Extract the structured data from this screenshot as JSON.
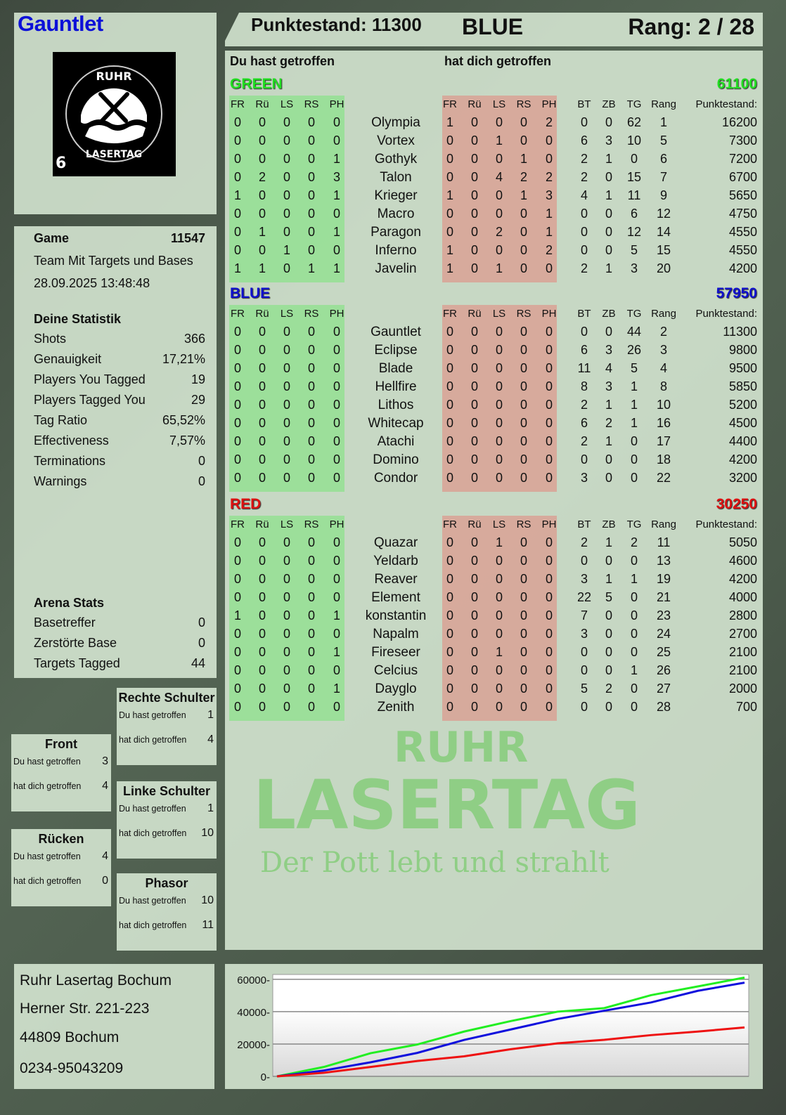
{
  "player": {
    "name": "Gauntlet",
    "logo_text_top": "RUHR",
    "logo_text_bottom": "LASERTAG",
    "logo_number": "6"
  },
  "header": {
    "score_label": "Punktestand: 11300",
    "team": "BLUE",
    "rank": "Rang: 2 / 28"
  },
  "colors": {
    "green": "#22dd22",
    "blue": "#1010cc",
    "red": "#dd1111",
    "player_name": "#0c10d8"
  },
  "game": {
    "label": "Game",
    "id": "11547",
    "mode": "Team Mit Targets und Bases",
    "datetime": "28.09.2025 13:48:48"
  },
  "stats": {
    "title": "Deine Statistik",
    "items": [
      {
        "label": "Shots",
        "value": "366"
      },
      {
        "label": "Genauigkeit",
        "value": "17,21%"
      },
      {
        "label": "Players You Tagged",
        "value": "19"
      },
      {
        "label": "Players Tagged You",
        "value": "29"
      },
      {
        "label": "Tag Ratio",
        "value": "65,52%"
      },
      {
        "label": "Effectiveness",
        "value": "7,57%"
      },
      {
        "label": "Terminations",
        "value": "0"
      },
      {
        "label": "Warnings",
        "value": "0"
      }
    ]
  },
  "arena": {
    "title": "Arena Stats",
    "items": [
      {
        "label": "Basetreffer",
        "value": "0"
      },
      {
        "label": "Zerstörte Base",
        "value": "0"
      },
      {
        "label": "Targets Tagged",
        "value": "44"
      }
    ]
  },
  "body_parts": {
    "you_hit_label": "Du hast getroffen",
    "hit_you_label": "hat dich getroffen",
    "right_shoulder": {
      "title": "Rechte Schulter",
      "you_hit": "1",
      "hit_you": "4"
    },
    "front": {
      "title": "Front",
      "you_hit": "3",
      "hit_you": "4"
    },
    "left_shoulder": {
      "title": "Linke Schulter",
      "you_hit": "1",
      "hit_you": "10"
    },
    "back": {
      "title": "Rücken",
      "you_hit": "4",
      "hit_you": "0"
    },
    "phasor": {
      "title": "Phasor",
      "you_hit": "10",
      "hit_you": "11"
    }
  },
  "address": {
    "line1": "Ruhr Lasertag Bochum",
    "line2": "Herner Str. 221-223",
    "line3": "44809 Bochum",
    "line4": "0234-95043209"
  },
  "watermark": {
    "line1": "RUHR",
    "line2": "LASERTAG",
    "line3": "Der Pott lebt und strahlt"
  },
  "table": {
    "you_hit_label": "Du hast getroffen",
    "hit_you_label": "hat dich getroffen",
    "hit_cols": [
      "FR",
      "Rü",
      "LS",
      "RS",
      "PH"
    ],
    "stat_cols": [
      "BT",
      "ZB",
      "TG",
      "Rang",
      "Punktestand:"
    ],
    "teams": [
      {
        "name": "GREEN",
        "score": "61100",
        "color": "#22dd22",
        "players": [
          {
            "name": "Olympia",
            "hit": [
              0,
              0,
              0,
              0,
              0
            ],
            "got": [
              1,
              0,
              0,
              0,
              2
            ],
            "bt": 0,
            "zb": 0,
            "tg": 62,
            "rang": 1,
            "score": 16200
          },
          {
            "name": "Vortex",
            "hit": [
              0,
              0,
              0,
              0,
              0
            ],
            "got": [
              0,
              0,
              1,
              0,
              0
            ],
            "bt": 6,
            "zb": 3,
            "tg": 10,
            "rang": 5,
            "score": 7300
          },
          {
            "name": "Gothyk",
            "hit": [
              0,
              0,
              0,
              0,
              1
            ],
            "got": [
              0,
              0,
              0,
              1,
              0
            ],
            "bt": 2,
            "zb": 1,
            "tg": 0,
            "rang": 6,
            "score": 7200
          },
          {
            "name": "Talon",
            "hit": [
              0,
              2,
              0,
              0,
              3
            ],
            "got": [
              0,
              0,
              4,
              2,
              2
            ],
            "bt": 2,
            "zb": 0,
            "tg": 15,
            "rang": 7,
            "score": 6700
          },
          {
            "name": "Krieger",
            "hit": [
              1,
              0,
              0,
              0,
              1
            ],
            "got": [
              1,
              0,
              0,
              1,
              3
            ],
            "bt": 4,
            "zb": 1,
            "tg": 11,
            "rang": 9,
            "score": 5650
          },
          {
            "name": "Macro",
            "hit": [
              0,
              0,
              0,
              0,
              0
            ],
            "got": [
              0,
              0,
              0,
              0,
              1
            ],
            "bt": 0,
            "zb": 0,
            "tg": 6,
            "rang": 12,
            "score": 4750
          },
          {
            "name": "Paragon",
            "hit": [
              0,
              1,
              0,
              0,
              1
            ],
            "got": [
              0,
              0,
              2,
              0,
              1
            ],
            "bt": 0,
            "zb": 0,
            "tg": 12,
            "rang": 14,
            "score": 4550
          },
          {
            "name": "Inferno",
            "hit": [
              0,
              0,
              1,
              0,
              0
            ],
            "got": [
              1,
              0,
              0,
              0,
              2
            ],
            "bt": 0,
            "zb": 0,
            "tg": 5,
            "rang": 15,
            "score": 4550
          },
          {
            "name": "Javelin",
            "hit": [
              1,
              1,
              0,
              1,
              1
            ],
            "got": [
              1,
              0,
              1,
              0,
              0
            ],
            "bt": 2,
            "zb": 1,
            "tg": 3,
            "rang": 20,
            "score": 4200
          }
        ]
      },
      {
        "name": "BLUE",
        "score": "57950",
        "color": "#1010cc",
        "players": [
          {
            "name": "Gauntlet",
            "hit": [
              0,
              0,
              0,
              0,
              0
            ],
            "got": [
              0,
              0,
              0,
              0,
              0
            ],
            "bt": 0,
            "zb": 0,
            "tg": 44,
            "rang": 2,
            "score": 11300
          },
          {
            "name": "Eclipse",
            "hit": [
              0,
              0,
              0,
              0,
              0
            ],
            "got": [
              0,
              0,
              0,
              0,
              0
            ],
            "bt": 6,
            "zb": 3,
            "tg": 26,
            "rang": 3,
            "score": 9800
          },
          {
            "name": "Blade",
            "hit": [
              0,
              0,
              0,
              0,
              0
            ],
            "got": [
              0,
              0,
              0,
              0,
              0
            ],
            "bt": 11,
            "zb": 4,
            "tg": 5,
            "rang": 4,
            "score": 9500
          },
          {
            "name": "Hellfire",
            "hit": [
              0,
              0,
              0,
              0,
              0
            ],
            "got": [
              0,
              0,
              0,
              0,
              0
            ],
            "bt": 8,
            "zb": 3,
            "tg": 1,
            "rang": 8,
            "score": 5850
          },
          {
            "name": "Lithos",
            "hit": [
              0,
              0,
              0,
              0,
              0
            ],
            "got": [
              0,
              0,
              0,
              0,
              0
            ],
            "bt": 2,
            "zb": 1,
            "tg": 1,
            "rang": 10,
            "score": 5200
          },
          {
            "name": "Whitecap",
            "hit": [
              0,
              0,
              0,
              0,
              0
            ],
            "got": [
              0,
              0,
              0,
              0,
              0
            ],
            "bt": 6,
            "zb": 2,
            "tg": 1,
            "rang": 16,
            "score": 4500
          },
          {
            "name": "Atachi",
            "hit": [
              0,
              0,
              0,
              0,
              0
            ],
            "got": [
              0,
              0,
              0,
              0,
              0
            ],
            "bt": 2,
            "zb": 1,
            "tg": 0,
            "rang": 17,
            "score": 4400
          },
          {
            "name": "Domino",
            "hit": [
              0,
              0,
              0,
              0,
              0
            ],
            "got": [
              0,
              0,
              0,
              0,
              0
            ],
            "bt": 0,
            "zb": 0,
            "tg": 0,
            "rang": 18,
            "score": 4200
          },
          {
            "name": "Condor",
            "hit": [
              0,
              0,
              0,
              0,
              0
            ],
            "got": [
              0,
              0,
              0,
              0,
              0
            ],
            "bt": 3,
            "zb": 0,
            "tg": 0,
            "rang": 22,
            "score": 3200
          }
        ]
      },
      {
        "name": "RED",
        "score": "30250",
        "color": "#dd1111",
        "players": [
          {
            "name": "Quazar",
            "hit": [
              0,
              0,
              0,
              0,
              0
            ],
            "got": [
              0,
              0,
              1,
              0,
              0
            ],
            "bt": 2,
            "zb": 1,
            "tg": 2,
            "rang": 11,
            "score": 5050
          },
          {
            "name": "Yeldarb",
            "hit": [
              0,
              0,
              0,
              0,
              0
            ],
            "got": [
              0,
              0,
              0,
              0,
              0
            ],
            "bt": 0,
            "zb": 0,
            "tg": 0,
            "rang": 13,
            "score": 4600
          },
          {
            "name": "Reaver",
            "hit": [
              0,
              0,
              0,
              0,
              0
            ],
            "got": [
              0,
              0,
              0,
              0,
              0
            ],
            "bt": 3,
            "zb": 1,
            "tg": 1,
            "rang": 19,
            "score": 4200
          },
          {
            "name": "Element",
            "hit": [
              0,
              0,
              0,
              0,
              0
            ],
            "got": [
              0,
              0,
              0,
              0,
              0
            ],
            "bt": 22,
            "zb": 5,
            "tg": 0,
            "rang": 21,
            "score": 4000
          },
          {
            "name": "konstantin",
            "hit": [
              1,
              0,
              0,
              0,
              1
            ],
            "got": [
              0,
              0,
              0,
              0,
              0
            ],
            "bt": 7,
            "zb": 0,
            "tg": 0,
            "rang": 23,
            "score": 2800
          },
          {
            "name": "Napalm",
            "hit": [
              0,
              0,
              0,
              0,
              0
            ],
            "got": [
              0,
              0,
              0,
              0,
              0
            ],
            "bt": 3,
            "zb": 0,
            "tg": 0,
            "rang": 24,
            "score": 2700
          },
          {
            "name": "Fireseer",
            "hit": [
              0,
              0,
              0,
              0,
              1
            ],
            "got": [
              0,
              0,
              1,
              0,
              0
            ],
            "bt": 0,
            "zb": 0,
            "tg": 0,
            "rang": 25,
            "score": 2100
          },
          {
            "name": "Celcius",
            "hit": [
              0,
              0,
              0,
              0,
              0
            ],
            "got": [
              0,
              0,
              0,
              0,
              0
            ],
            "bt": 0,
            "zb": 0,
            "tg": 1,
            "rang": 26,
            "score": 2100
          },
          {
            "name": "Dayglo",
            "hit": [
              0,
              0,
              0,
              0,
              1
            ],
            "got": [
              0,
              0,
              0,
              0,
              0
            ],
            "bt": 5,
            "zb": 2,
            "tg": 0,
            "rang": 27,
            "score": 2000
          },
          {
            "name": "Zenith",
            "hit": [
              0,
              0,
              0,
              0,
              0
            ],
            "got": [
              0,
              0,
              0,
              0,
              0
            ],
            "bt": 0,
            "zb": 0,
            "tg": 0,
            "rang": 28,
            "score": 700
          }
        ]
      }
    ]
  },
  "chart_data": {
    "type": "line",
    "title": "",
    "xlabel": "",
    "ylabel": "",
    "ylim": [
      0,
      63000
    ],
    "yticks": [
      "0",
      "20000",
      "40000",
      "60000"
    ],
    "grid": true,
    "legend": "none",
    "x": [
      0,
      1,
      2,
      3,
      4,
      5,
      6,
      7,
      8,
      9,
      10
    ],
    "series": [
      {
        "color": "#22ee22",
        "values": [
          0,
          5800,
          14300,
          19700,
          27700,
          34200,
          40000,
          42200,
          50200,
          55600,
          61100
        ]
      },
      {
        "color": "#1010dd",
        "values": [
          0,
          3600,
          8700,
          14500,
          22500,
          29000,
          35500,
          40600,
          45700,
          52900,
          57950
        ]
      },
      {
        "color": "#ee1111",
        "values": [
          0,
          2200,
          5800,
          9500,
          12400,
          16800,
          20400,
          22600,
          25500,
          27700,
          30250
        ]
      }
    ]
  }
}
